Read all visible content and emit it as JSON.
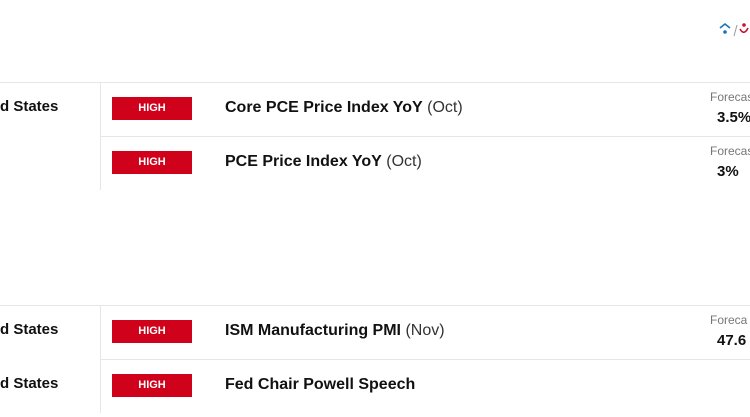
{
  "groups": [
    {
      "rows": [
        {
          "country": "d States",
          "impact": "HIGH",
          "event": "Core PCE Price Index YoY",
          "period": "(Oct)",
          "forecast_label": "Forecas",
          "forecast": "3.5%"
        },
        {
          "impact": "HIGH",
          "event": "PCE Price Index YoY",
          "period": "(Oct)",
          "forecast_label": "Forecas",
          "forecast": "3%"
        }
      ]
    },
    {
      "rows": [
        {
          "country": "d States",
          "impact": "HIGH",
          "event": "ISM Manufacturing PMI",
          "period": "(Nov)",
          "forecast_label": "Foreca",
          "forecast": "47.6"
        },
        {
          "country": "d States",
          "impact": "HIGH",
          "event": "Fed Chair Powell Speech"
        }
      ]
    }
  ]
}
